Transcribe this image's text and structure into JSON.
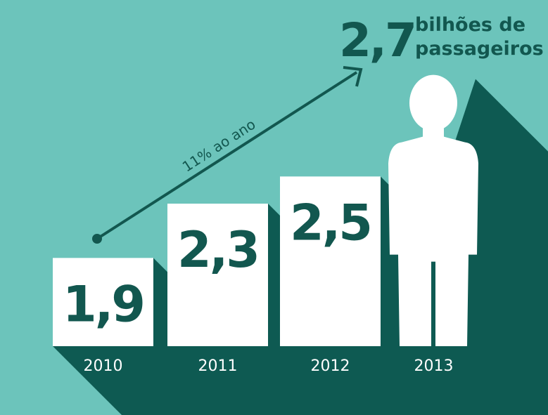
{
  "chart_data": {
    "type": "bar",
    "title_lines": [
      "bilhões de",
      "passageiros"
    ],
    "annotation": "11% ao ano",
    "categories": [
      "2010",
      "2011",
      "2012",
      "2013"
    ],
    "values": [
      1.9,
      2.3,
      2.5,
      2.7
    ],
    "value_labels": [
      "1,9",
      "2,3",
      "2,5",
      "2,7"
    ],
    "color": "#ffffff",
    "ylim": [
      1.25,
      2.75
    ]
  }
}
